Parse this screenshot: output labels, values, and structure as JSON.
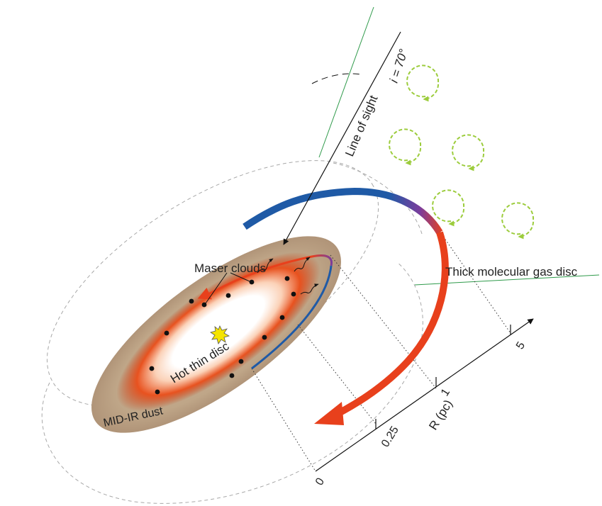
{
  "labels": {
    "inclination": "i = 70°",
    "line_of_sight": "Line of sight",
    "maser_clouds": "Maser clouds",
    "thick_disc": "Thick molecular gas disc",
    "hot_thin_disc": "Hot thin disc",
    "mid_ir_dust": "MID-IR dust"
  },
  "axis": {
    "title": "R (pc)",
    "ticks": [
      "0",
      "0.25",
      "1",
      "5"
    ]
  },
  "colors": {
    "approaching": "#1f5aa6",
    "receding": "#e8401c",
    "transition": "#7b3d9c",
    "eddies": "#9ccc3c",
    "guide_lines": "#2e9a4a",
    "dust": "#b89f82"
  }
}
